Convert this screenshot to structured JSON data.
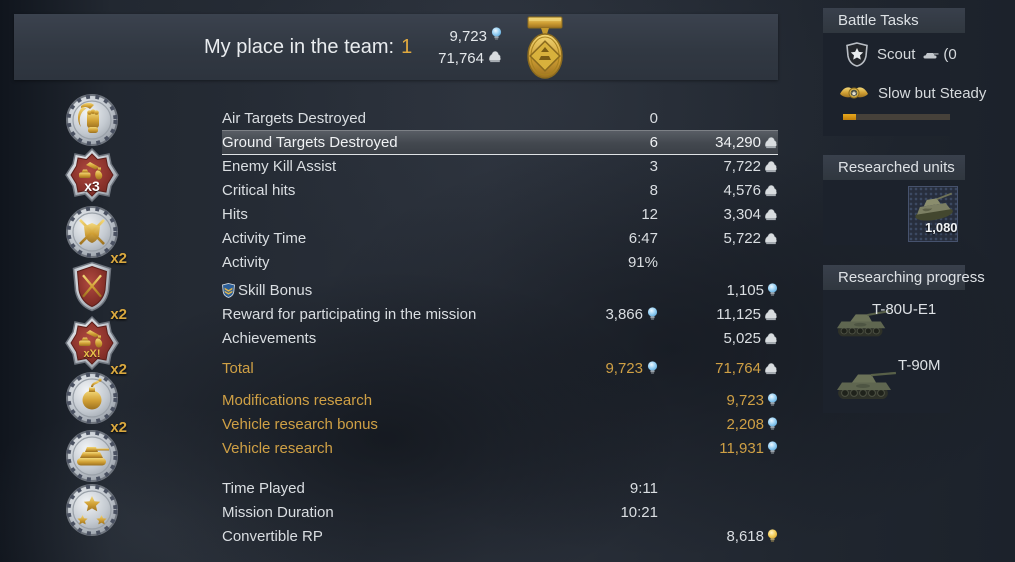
{
  "colors": {
    "gold_text": "#cfa045",
    "place_gold": "#e0a93f",
    "text": "#dadee2",
    "rp_blue": "#7cc4ef",
    "rp_gold": "#f0c23c",
    "sl_silver": "#d8dcdf",
    "highlight_line": "#dfe2e5",
    "progress_orange": "#d28f12",
    "panel": "#313842",
    "sidebar_panel": "#1c222c"
  },
  "header": {
    "title": "My place in the team:",
    "place": "1",
    "totals": {
      "rp": "9,723",
      "sl": "71,764"
    }
  },
  "stats": {
    "rows": [
      {
        "label": "Air Targets Destroyed",
        "mid": "0"
      },
      {
        "label": "Ground Targets Destroyed",
        "mid": "6",
        "right": "34,290",
        "right_icon": "sl",
        "style": "highlight"
      },
      {
        "label": "Enemy Kill Assist",
        "mid": "3",
        "right": "7,722",
        "right_icon": "sl"
      },
      {
        "label": "Critical hits",
        "mid": "8",
        "right": "4,576",
        "right_icon": "sl"
      },
      {
        "label": "Hits",
        "mid": "12",
        "right": "3,304",
        "right_icon": "sl"
      },
      {
        "label": "Activity Time",
        "mid": "6:47",
        "right": "5,722",
        "right_icon": "sl"
      },
      {
        "label": "Activity",
        "mid": "91%"
      },
      {
        "label": "Skill Bonus",
        "lead_icon": "skill-shield",
        "right": "1,105",
        "right_icon": "rp",
        "spacer_before": 4
      },
      {
        "label": "Reward for participating in the mission",
        "mid": "3,866",
        "mid_icon": "rp",
        "right": "11,125",
        "right_icon": "sl"
      },
      {
        "label": "Achievements",
        "right": "5,025",
        "right_icon": "sl"
      },
      {
        "label": "Total",
        "mid": "9,723",
        "mid_icon": "rp",
        "right": "71,764",
        "right_icon": "sl",
        "style": "gold",
        "spacer_before": 6
      },
      {
        "label": "Modifications research",
        "right": "9,723",
        "right_icon": "rp",
        "style": "gold",
        "spacer_before": 8
      },
      {
        "label": "Vehicle research bonus",
        "right": "2,208",
        "right_icon": "rp",
        "style": "gold"
      },
      {
        "label": "Vehicle research",
        "right": "11,931",
        "right_icon": "rp",
        "style": "gold"
      },
      {
        "label": "Time Played",
        "mid": "9:11",
        "spacer_before": 16
      },
      {
        "label": "Mission Duration",
        "mid": "10:21"
      },
      {
        "label": "Convertible RP",
        "right": "8,618",
        "right_icon": "rp-gold"
      }
    ]
  },
  "medals": [
    {
      "type": "round-fist",
      "multiplier": "",
      "inner": "",
      "inner_color": ""
    },
    {
      "type": "cross",
      "multiplier": "",
      "inner": "x3",
      "inner_color": "#ffffff"
    },
    {
      "type": "round-swords",
      "multiplier": "",
      "inner": "",
      "inner_color": ""
    },
    {
      "type": "shield",
      "multiplier": "x2",
      "inner": "",
      "inner_color": ""
    },
    {
      "type": "cross",
      "multiplier": "x2",
      "inner": "xX!",
      "inner_color": "#e8c04a"
    },
    {
      "type": "round-bomb",
      "multiplier": "x2",
      "inner": "",
      "inner_color": ""
    },
    {
      "type": "round-tank",
      "multiplier": "x2",
      "inner": "",
      "inner_color": ""
    },
    {
      "type": "round-stars",
      "multiplier": "",
      "inner": "",
      "inner_color": ""
    }
  ],
  "sidebar": {
    "battle_tasks_title": "Battle Tasks",
    "tasks": [
      {
        "icon": "scout-shield",
        "name": "Scout",
        "suffix": "(0"
      },
      {
        "icon": "gold-wings",
        "name": "Slow but Steady",
        "suffix": ""
      }
    ],
    "progress_percent": 12,
    "researched_title": "Researched units",
    "researched_value": "1,080",
    "researching_title": "Researching progress",
    "vehicles": [
      {
        "name": "T-80U-E1"
      },
      {
        "name": "T-90M"
      }
    ]
  }
}
